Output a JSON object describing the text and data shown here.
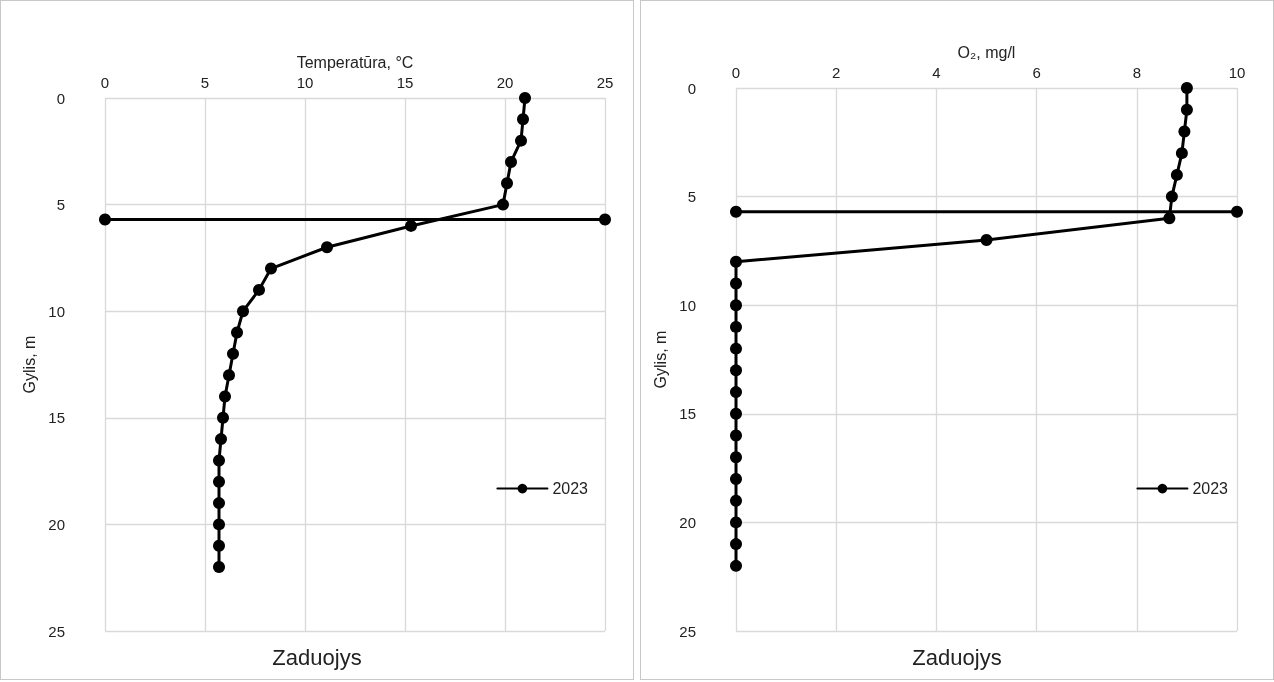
{
  "chart_data": [
    {
      "type": "line",
      "title": "Zaduojys",
      "xlabel": "Temperatūra, °C",
      "ylabel": "Gylis, m",
      "xlim": [
        0,
        25
      ],
      "xticks": [
        0,
        5,
        10,
        15,
        20,
        25
      ],
      "ylim": [
        25,
        0
      ],
      "yticks": [
        0,
        5,
        10,
        15,
        20,
        25
      ],
      "grid": true,
      "legend": "right",
      "marker": "circle",
      "line_style": "solid",
      "series": [
        {
          "name": "2023",
          "color": "#000000",
          "x": [
            21.0,
            20.9,
            20.8,
            20.3,
            20.1,
            19.9,
            15.3,
            11.1,
            8.3,
            7.7,
            6.9,
            6.6,
            6.4,
            6.2,
            6.0,
            5.9,
            5.8,
            5.7,
            5.7,
            5.7,
            5.7,
            5.7,
            5.7
          ],
          "values": [
            0,
            1,
            2,
            3,
            4,
            5,
            6,
            7,
            8,
            9,
            10,
            11,
            12,
            13,
            14,
            15,
            16,
            17,
            18,
            19,
            20,
            21,
            22
          ]
        },
        {
          "color": "#000000",
          "x": [
            0,
            25
          ],
          "values": [
            5.7,
            5.7
          ]
        }
      ]
    },
    {
      "type": "line",
      "title": "Zaduojys",
      "xlabel": "O₂, mg/l",
      "ylabel": "Gylis, m",
      "xlim": [
        0,
        10
      ],
      "xticks": [
        0,
        2,
        4,
        6,
        8,
        10
      ],
      "ylim": [
        25,
        0
      ],
      "yticks": [
        0,
        5,
        10,
        15,
        20,
        25
      ],
      "grid": true,
      "legend": "right",
      "marker": "circle",
      "line_style": "solid",
      "series": [
        {
          "name": "2023",
          "color": "#000000",
          "x": [
            9.0,
            9.0,
            8.95,
            8.9,
            8.8,
            8.7,
            8.65,
            5.0,
            0,
            0,
            0,
            0,
            0,
            0,
            0,
            0,
            0,
            0,
            0,
            0,
            0,
            0,
            0
          ],
          "values": [
            0,
            1,
            2,
            3,
            4,
            5,
            6,
            7,
            8,
            9,
            10,
            11,
            12,
            13,
            14,
            15,
            16,
            17,
            18,
            19,
            20,
            21,
            22
          ]
        },
        {
          "color": "#000000",
          "x": [
            0,
            10
          ],
          "values": [
            5.7,
            5.7
          ]
        }
      ]
    }
  ]
}
